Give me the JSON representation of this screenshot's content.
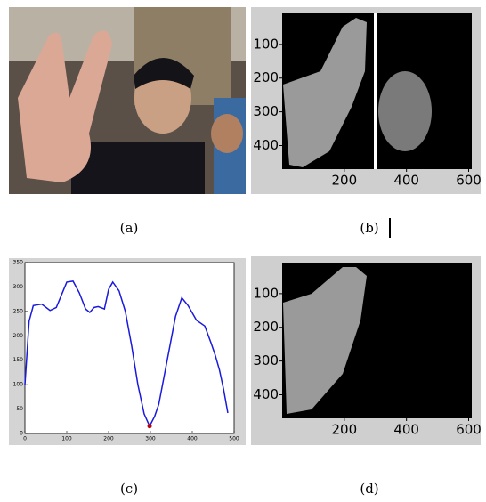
{
  "figure": {
    "labels": [
      "(a)",
      "(b)",
      "(c)",
      "(d)"
    ]
  },
  "image_b": {
    "xlim": [
      0,
      610
    ],
    "ylim": [
      0,
      470
    ],
    "xticks": [
      200,
      400,
      600
    ],
    "yticks": [
      100,
      200,
      300,
      400
    ]
  },
  "image_d": {
    "xlim": [
      0,
      610
    ],
    "ylim": [
      0,
      470
    ],
    "xticks": [
      200,
      400,
      600
    ],
    "yticks": [
      100,
      200,
      300,
      400
    ]
  },
  "chart_data": {
    "type": "line",
    "color": "#1a1adc",
    "x": [
      0,
      10,
      20,
      40,
      60,
      75,
      100,
      115,
      130,
      145,
      155,
      165,
      175,
      190,
      200,
      210,
      225,
      240,
      255,
      270,
      285,
      298,
      310,
      320,
      340,
      360,
      375,
      390,
      410,
      430,
      445,
      455,
      465,
      475,
      485
    ],
    "values": [
      100,
      230,
      262,
      265,
      252,
      258,
      310,
      312,
      288,
      255,
      248,
      258,
      260,
      255,
      295,
      310,
      292,
      250,
      180,
      100,
      40,
      15,
      35,
      60,
      150,
      240,
      278,
      262,
      232,
      220,
      185,
      160,
      130,
      90,
      42
    ],
    "marker": {
      "x": 298,
      "y": 15,
      "color": "#c00000"
    },
    "xlim": [
      0,
      500
    ],
    "ylim": [
      0,
      350
    ],
    "xticks": [
      0,
      100,
      200,
      300,
      400,
      500
    ],
    "yticks": [
      0,
      50,
      100,
      150,
      200,
      250,
      300,
      350
    ]
  }
}
